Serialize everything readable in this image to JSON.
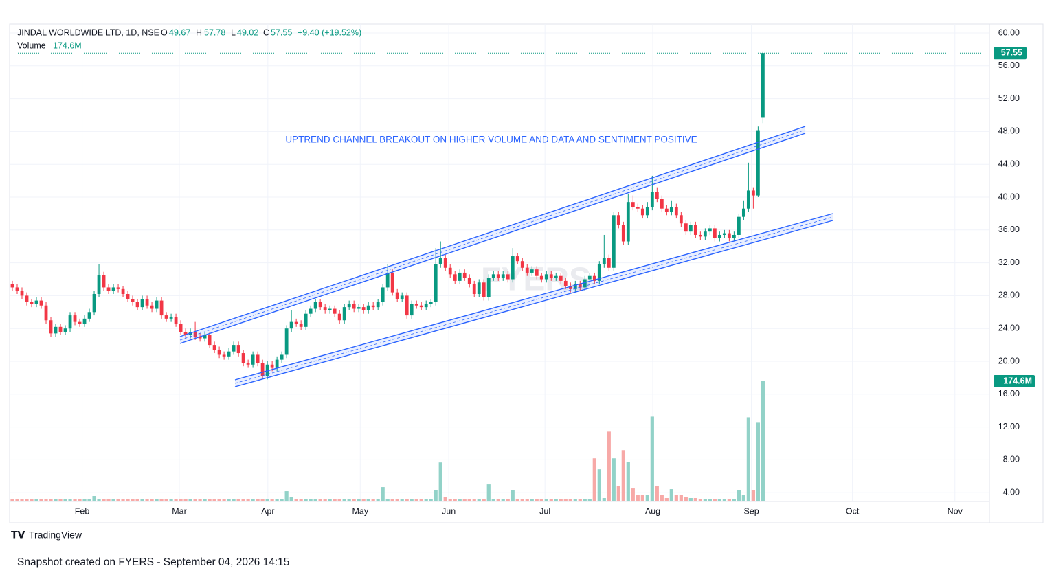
{
  "chart_data": {
    "type": "candlestick",
    "title": "JINDAL WORLDWIDE LTD, 1D, NSE",
    "ohlc_labels": [
      "O",
      "H",
      "L",
      "C"
    ],
    "change_label": "+9.40 (+19.52%)",
    "annotation": "UPTREND CHANNEL BREAKOUT ON HIGHER VOLUME AND DATA AND SENTIMENT POSITIVE",
    "watermark": "FYERS",
    "up_color": "#089981",
    "down_color": "#f23645",
    "volume_up_color": "#92d2c8",
    "volume_down_color": "#f7a9a7",
    "grid": true,
    "open": [
      29.4,
      29.0,
      28.6,
      28.0,
      27.2,
      27.0,
      27.4,
      26.8,
      25.0,
      23.4,
      24.2,
      23.6,
      24.0,
      25.6,
      24.8,
      24.6,
      25.2,
      26.0,
      28.2,
      30.5,
      29.0,
      28.6,
      29.0,
      28.8,
      28.2,
      27.6,
      27.2,
      26.6,
      27.6,
      26.8,
      26.4,
      27.4,
      25.6,
      25.2,
      25.4,
      24.6,
      23.6,
      23.2,
      23.6,
      23.0,
      22.8,
      23.2,
      22.0,
      21.4,
      20.8,
      20.6,
      21.2,
      22.0,
      21.0,
      19.8,
      19.6,
      20.8,
      19.8,
      18.2,
      19.6,
      19.2,
      20.2,
      20.8,
      24.0,
      24.8,
      24.6,
      24.2,
      25.8,
      26.4,
      27.2,
      26.6,
      26.2,
      26.4,
      25.8,
      25.0,
      26.6,
      27.0,
      26.4,
      26.6,
      26.2,
      26.8,
      26.6,
      27.2,
      29.0,
      30.8,
      28.4,
      27.6,
      28.0,
      25.6,
      27.0,
      26.8,
      26.6,
      27.0,
      27.2,
      31.8,
      32.6,
      31.4,
      30.6,
      29.8,
      30.8,
      30.2,
      29.4,
      28.2,
      29.6,
      27.8,
      30.2,
      30.6,
      30.2,
      30.6,
      30.0,
      32.8,
      32.2,
      31.4,
      30.8,
      31.2,
      30.4,
      30.0,
      30.6,
      30.2,
      30.4,
      29.8,
      29.2,
      28.8,
      29.4,
      29.0,
      30.0,
      30.4,
      29.8,
      31.8,
      32.6,
      31.4,
      37.8,
      36.6,
      34.6,
      39.4,
      38.8,
      38.6,
      37.8,
      38.8,
      40.6,
      39.8,
      38.6,
      38.2,
      38.8,
      37.8,
      36.8,
      35.8,
      36.6,
      35.4,
      35.2,
      35.8,
      36.2,
      35.0,
      35.4,
      35.6,
      35.0,
      35.4,
      37.6,
      38.6,
      40.8,
      40.2,
      49.67
    ],
    "high": [
      29.8,
      29.4,
      29.0,
      28.4,
      27.6,
      27.8,
      27.8,
      27.2,
      25.4,
      24.6,
      24.6,
      24.4,
      26.0,
      26.0,
      25.2,
      25.6,
      26.4,
      28.6,
      31.8,
      30.9,
      29.4,
      29.4,
      29.4,
      29.2,
      28.6,
      28.0,
      27.6,
      28.0,
      28.0,
      27.2,
      27.8,
      27.8,
      26.0,
      25.8,
      25.8,
      25.0,
      24.0,
      24.0,
      24.8,
      23.4,
      23.6,
      23.6,
      22.4,
      21.8,
      21.2,
      21.6,
      22.4,
      22.4,
      21.4,
      20.2,
      21.2,
      21.2,
      20.2,
      20.0,
      20.0,
      20.6,
      21.2,
      24.4,
      26.2,
      25.2,
      25.0,
      26.2,
      26.8,
      27.6,
      27.6,
      27.0,
      26.8,
      26.8,
      26.2,
      27.0,
      27.4,
      27.4,
      27.0,
      27.0,
      27.2,
      27.2,
      27.6,
      29.4,
      31.8,
      31.2,
      28.8,
      28.4,
      28.4,
      27.4,
      27.4,
      27.2,
      27.4,
      27.6,
      33.8,
      34.6,
      33.0,
      31.8,
      31.0,
      31.2,
      31.2,
      30.6,
      29.8,
      30.0,
      30.0,
      30.6,
      31.0,
      31.0,
      31.0,
      31.0,
      33.8,
      33.2,
      32.6,
      31.8,
      31.6,
      31.6,
      30.8,
      31.0,
      31.0,
      30.8,
      30.8,
      30.2,
      29.6,
      29.8,
      29.8,
      30.4,
      30.8,
      30.8,
      32.2,
      35.4,
      33.0,
      38.2,
      38.2,
      37.0,
      40.4,
      40.2,
      39.2,
      39.0,
      39.4,
      42.6,
      41.2,
      40.2,
      39.0,
      39.6,
      39.2,
      38.2,
      37.2,
      37.0,
      37.0,
      35.8,
      36.2,
      36.6,
      36.6,
      35.8,
      36.0,
      36.0,
      35.8,
      38.0,
      39.6,
      44.2,
      41.2,
      48.6,
      57.78
    ],
    "low": [
      28.6,
      28.2,
      27.6,
      26.8,
      26.6,
      26.6,
      26.4,
      24.6,
      23.0,
      23.0,
      23.2,
      23.2,
      23.6,
      24.4,
      24.2,
      24.2,
      24.8,
      25.6,
      27.8,
      28.6,
      28.2,
      28.2,
      28.4,
      27.8,
      27.2,
      26.8,
      26.2,
      26.2,
      26.4,
      26.0,
      26.0,
      25.2,
      24.8,
      24.8,
      24.2,
      23.2,
      22.8,
      22.8,
      22.6,
      22.4,
      22.4,
      21.6,
      21.0,
      20.4,
      20.2,
      20.2,
      20.8,
      20.6,
      19.4,
      19.2,
      19.2,
      19.4,
      17.8,
      17.8,
      18.8,
      18.8,
      19.8,
      20.4,
      23.6,
      24.2,
      23.8,
      23.8,
      25.4,
      26.0,
      26.2,
      25.8,
      25.8,
      25.4,
      24.6,
      24.6,
      26.2,
      26.0,
      26.0,
      25.8,
      25.8,
      26.2,
      26.2,
      26.8,
      28.6,
      28.0,
      27.2,
      27.2,
      25.2,
      25.2,
      26.4,
      26.2,
      26.2,
      26.6,
      26.8,
      31.4,
      31.0,
      30.2,
      29.4,
      29.4,
      29.8,
      29.0,
      27.8,
      27.8,
      27.4,
      27.4,
      29.8,
      29.8,
      29.8,
      29.6,
      29.6,
      31.8,
      31.0,
      30.4,
      30.4,
      30.0,
      29.6,
      29.6,
      29.8,
      29.8,
      29.4,
      28.8,
      28.4,
      28.4,
      28.6,
      28.6,
      29.6,
      29.4,
      29.4,
      31.4,
      31.0,
      31.0,
      36.2,
      34.2,
      34.2,
      38.4,
      38.2,
      37.4,
      37.4,
      38.4,
      39.4,
      38.2,
      37.8,
      37.8,
      37.4,
      36.4,
      35.4,
      35.4,
      35.0,
      34.8,
      34.8,
      35.4,
      34.6,
      34.6,
      35.0,
      34.6,
      34.6,
      35.0,
      37.2,
      38.2,
      38.6,
      40.0,
      49.02
    ],
    "close": [
      29.0,
      28.6,
      28.0,
      27.2,
      27.0,
      27.4,
      26.8,
      25.0,
      23.4,
      24.2,
      23.6,
      24.0,
      25.6,
      24.8,
      24.6,
      25.2,
      26.0,
      28.2,
      30.5,
      29.0,
      28.6,
      29.0,
      28.8,
      28.2,
      27.6,
      27.2,
      26.6,
      27.6,
      26.8,
      26.4,
      27.4,
      25.6,
      25.2,
      25.4,
      24.6,
      23.6,
      23.2,
      23.6,
      23.0,
      22.8,
      23.2,
      22.0,
      21.4,
      20.8,
      20.6,
      21.2,
      22.0,
      21.0,
      19.8,
      19.6,
      20.8,
      19.8,
      18.2,
      19.6,
      19.2,
      20.2,
      20.8,
      24.0,
      24.8,
      24.6,
      24.2,
      25.8,
      26.4,
      27.2,
      26.6,
      26.2,
      26.4,
      25.8,
      25.0,
      26.6,
      27.0,
      26.4,
      26.6,
      26.2,
      26.8,
      26.6,
      27.2,
      29.0,
      30.8,
      28.4,
      27.6,
      28.0,
      25.6,
      27.0,
      26.8,
      26.6,
      27.0,
      27.2,
      31.8,
      32.6,
      31.4,
      30.6,
      29.8,
      30.8,
      30.2,
      29.4,
      28.2,
      29.6,
      27.8,
      30.2,
      30.6,
      30.2,
      30.6,
      30.0,
      32.8,
      32.2,
      31.4,
      30.8,
      31.2,
      30.4,
      30.0,
      30.6,
      30.2,
      30.4,
      29.8,
      29.2,
      28.8,
      29.4,
      29.0,
      30.0,
      30.4,
      29.8,
      31.8,
      32.6,
      31.4,
      37.8,
      36.6,
      34.6,
      39.4,
      38.8,
      38.6,
      37.8,
      38.8,
      40.6,
      39.8,
      38.6,
      38.2,
      38.8,
      37.8,
      36.8,
      35.8,
      36.6,
      35.4,
      35.2,
      35.8,
      36.2,
      35.0,
      35.4,
      35.6,
      35.0,
      35.4,
      37.6,
      38.6,
      40.8,
      40.2,
      48.15,
      57.55
    ],
    "volume": {
      "name": "Volume",
      "last_label": "174.6M",
      "values": [
        2,
        2,
        2,
        2,
        2,
        2,
        2,
        2,
        2,
        2,
        2,
        2,
        2,
        2,
        2,
        2,
        2,
        7,
        2,
        2,
        2,
        2,
        2,
        2,
        2,
        2,
        2,
        2,
        2,
        2,
        2,
        2,
        2,
        2,
        2,
        2,
        2,
        2,
        2,
        2,
        2,
        2,
        2,
        2,
        2,
        2,
        2,
        2,
        2,
        2,
        2,
        2,
        2,
        2,
        2,
        2,
        2,
        14,
        6,
        2,
        2,
        2,
        2,
        2,
        2,
        2,
        2,
        2,
        2,
        2,
        2,
        2,
        2,
        2,
        2,
        2,
        2,
        20,
        2,
        2,
        2,
        2,
        2,
        2,
        2,
        2,
        2,
        2,
        16,
        56,
        6,
        2,
        2,
        2,
        2,
        2,
        2,
        2,
        2,
        24,
        2,
        2,
        2,
        2,
        16,
        2,
        2,
        2,
        2,
        2,
        2,
        2,
        2,
        2,
        2,
        2,
        2,
        2,
        2,
        2,
        2,
        62,
        46,
        4,
        101,
        62,
        22,
        74,
        57,
        18,
        9,
        9,
        9,
        123,
        22,
        9,
        4,
        17,
        9,
        9,
        6,
        4,
        4,
        2,
        2,
        2,
        2,
        2,
        2,
        2,
        2,
        16,
        8,
        122,
        16,
        114,
        174.6
      ],
      "ylim": [
        0,
        174.6
      ]
    },
    "xlim": [
      -0.5,
      203
    ],
    "xticks": [
      {
        "value": 14.5,
        "label": "Feb"
      },
      {
        "value": 34.7,
        "label": "Mar"
      },
      {
        "value": 53.1,
        "label": "Apr"
      },
      {
        "value": 72.3,
        "label": "May"
      },
      {
        "value": 90.7,
        "label": "Jun"
      },
      {
        "value": 110.7,
        "label": "Jul"
      },
      {
        "value": 133.1,
        "label": "Aug"
      },
      {
        "value": 153.6,
        "label": "Sep"
      },
      {
        "value": 174.6,
        "label": "Oct"
      },
      {
        "value": 195.9,
        "label": "Nov"
      }
    ],
    "ylim": [
      3,
      61
    ],
    "yticks": [
      {
        "value": 4,
        "label": "4.00"
      },
      {
        "value": 8,
        "label": "8.00"
      },
      {
        "value": 12,
        "label": "12.00"
      },
      {
        "value": 16,
        "label": "16.00"
      },
      {
        "value": 20,
        "label": "20.00"
      },
      {
        "value": 24,
        "label": "24.00"
      },
      {
        "value": 28,
        "label": "28.00"
      },
      {
        "value": 32,
        "label": "32.00"
      },
      {
        "value": 36,
        "label": "36.00"
      },
      {
        "value": 40,
        "label": "40.00"
      },
      {
        "value": 44,
        "label": "44.00"
      },
      {
        "value": 48,
        "label": "48.00"
      },
      {
        "value": 52,
        "label": "52.00"
      },
      {
        "value": 56,
        "label": "56.00"
      },
      {
        "value": 60,
        "label": "60.00"
      }
    ]
  },
  "footer": {
    "brand": "TradingView",
    "snapshot": "Snapshot created on FYERS - September 04, 2026 14:15"
  }
}
